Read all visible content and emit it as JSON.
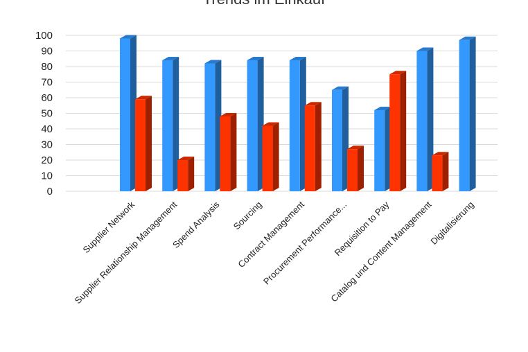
{
  "chart_data": {
    "type": "bar",
    "title": "Trends im Einkauf",
    "categories": [
      "Supplier Network",
      "Supplier Relationship Management",
      "Spend Analysis",
      "Sourcing",
      "Contract Management",
      "Procurement Performance...",
      "Requisition to Pay",
      "Catalog und Content Management",
      "Digitalisierung"
    ],
    "series": [
      {
        "values": [
          98,
          84,
          82,
          84,
          84,
          65,
          52,
          90,
          97
        ],
        "color": "#3399ff"
      },
      {
        "values": [
          59,
          20,
          48,
          42,
          55,
          27,
          75,
          23,
          null
        ],
        "color": "#ff3300"
      }
    ],
    "ylim": [
      0,
      100
    ],
    "yticks": [
      0,
      10,
      20,
      30,
      40,
      50,
      60,
      70,
      80,
      90,
      100
    ],
    "grid": true,
    "legend": "none",
    "style": "3d-bar"
  }
}
